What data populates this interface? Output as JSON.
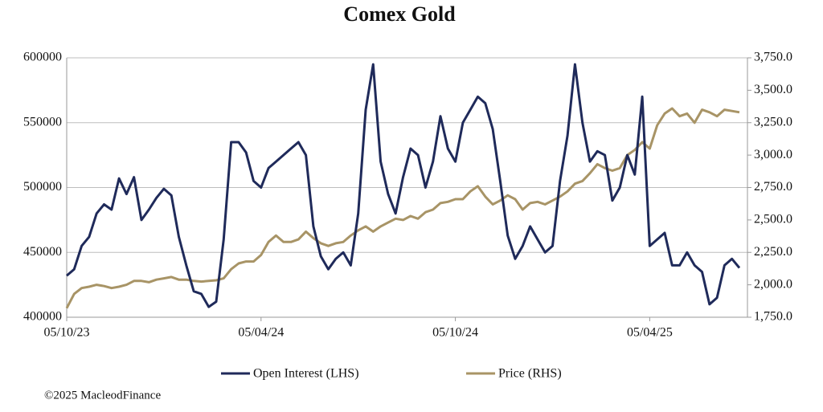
{
  "chart_data": {
    "type": "line",
    "title": "Comex Gold",
    "source": "©2025 MacleodFinance",
    "categories": [
      "05/10/23",
      null,
      null,
      null,
      null,
      null,
      null,
      null,
      null,
      null,
      null,
      null,
      null,
      null,
      null,
      null,
      null,
      null,
      null,
      null,
      null,
      null,
      null,
      null,
      null,
      null,
      "05/04/24",
      null,
      null,
      null,
      null,
      null,
      null,
      null,
      null,
      null,
      null,
      null,
      null,
      null,
      null,
      null,
      null,
      null,
      null,
      null,
      null,
      null,
      null,
      null,
      null,
      null,
      "05/10/24",
      null,
      null,
      null,
      null,
      null,
      null,
      null,
      null,
      null,
      null,
      null,
      null,
      null,
      null,
      null,
      null,
      null,
      null,
      null,
      null,
      null,
      null,
      null,
      null,
      null,
      "05/04/25",
      null,
      null,
      null,
      null,
      null,
      null,
      null,
      null,
      null,
      null,
      null,
      null
    ],
    "series": [
      {
        "name": "Open Interest (LHS)",
        "color": "#1f2a5a",
        "axis": "y",
        "values": [
          432000,
          437000,
          455000,
          462000,
          480000,
          487000,
          483000,
          507000,
          495000,
          508000,
          475000,
          483000,
          492000,
          499000,
          494000,
          462000,
          440000,
          420000,
          418000,
          408000,
          412000,
          460000,
          535000,
          535000,
          527000,
          505000,
          500000,
          515000,
          520000,
          525000,
          530000,
          535000,
          525000,
          470000,
          447000,
          437000,
          445000,
          450000,
          440000,
          480000,
          560000,
          595000,
          520000,
          495000,
          480000,
          508000,
          530000,
          525000,
          500000,
          520000,
          555000,
          530000,
          520000,
          550000,
          560000,
          570000,
          565000,
          545000,
          505000,
          463000,
          445000,
          455000,
          470000,
          460000,
          450000,
          455000,
          505000,
          540000,
          595000,
          550000,
          520000,
          528000,
          525000,
          490000,
          500000,
          525000,
          510000,
          570000,
          455000,
          460000,
          465000,
          440000,
          440000,
          450000,
          440000,
          435000,
          410000,
          415000,
          440000,
          445000,
          438000
        ]
      },
      {
        "name": "Price (RHS)",
        "color": "#a89466",
        "axis": "y2",
        "values": [
          1820,
          1930,
          1975,
          1985,
          2000,
          1990,
          1975,
          1985,
          2000,
          2030,
          2030,
          2020,
          2040,
          2050,
          2060,
          2040,
          2040,
          2030,
          2025,
          2030,
          2035,
          2050,
          2120,
          2165,
          2180,
          2180,
          2230,
          2330,
          2380,
          2330,
          2330,
          2350,
          2410,
          2360,
          2320,
          2300,
          2320,
          2330,
          2380,
          2420,
          2450,
          2410,
          2450,
          2480,
          2510,
          2500,
          2530,
          2510,
          2560,
          2580,
          2630,
          2640,
          2660,
          2660,
          2720,
          2760,
          2680,
          2620,
          2650,
          2690,
          2660,
          2580,
          2630,
          2640,
          2620,
          2650,
          2680,
          2720,
          2780,
          2800,
          2860,
          2930,
          2900,
          2880,
          2900,
          3000,
          3040,
          3100,
          3050,
          3230,
          3320,
          3360,
          3300,
          3320,
          3250,
          3350,
          3330,
          3300,
          3350,
          3340,
          3330
        ]
      }
    ],
    "ylim": [
      400000,
      600000
    ],
    "yticks": [
      400000,
      450000,
      500000,
      550000,
      600000
    ],
    "y2lim": [
      1750,
      3750
    ],
    "y2ticks": [
      {
        "value": 1750,
        "label": "1,750.0"
      },
      {
        "value": 2000,
        "label": "2,000.0"
      },
      {
        "value": 2250,
        "label": "2,250.0"
      },
      {
        "value": 2500,
        "label": "2,500.0"
      },
      {
        "value": 2750,
        "label": "2,750.0"
      },
      {
        "value": 3000,
        "label": "3,000.0"
      },
      {
        "value": 3250,
        "label": "3,250.0"
      },
      {
        "value": 3500,
        "label": "3,500.0"
      },
      {
        "value": 3750,
        "label": "3,750.0"
      }
    ],
    "grid": true,
    "legend": "bottom"
  }
}
